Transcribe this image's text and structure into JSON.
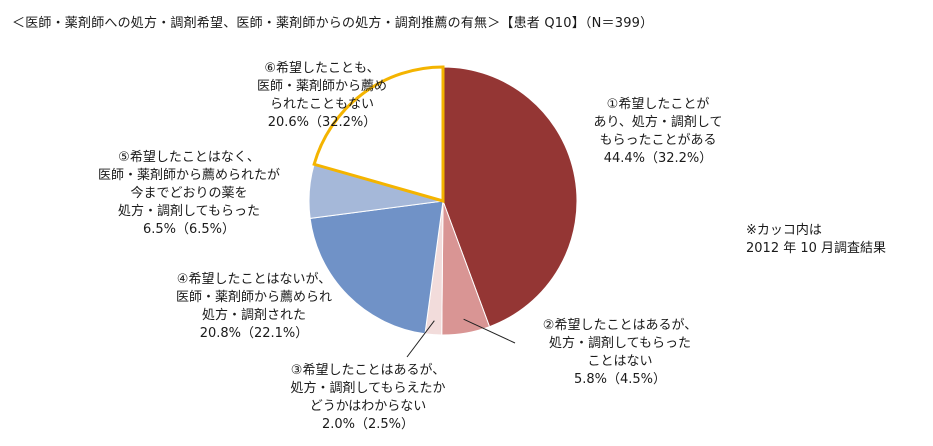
{
  "chart_data": {
    "type": "pie",
    "title": "＜医師・薬剤師への処方・調剤希望、医師・薬剤師からの処方・調剤推薦の有無＞【患者 Q10】（N＝399）",
    "slices": [
      {
        "label_lines": [
          "①希望したことが",
          "あり、処方・調剤して",
          "もらったことがある"
        ],
        "value": 44.4,
        "value_text": "44.4%（32.2%）",
        "prev_value": 32.2,
        "color": "#943634"
      },
      {
        "label_lines": [
          "②希望したことはあるが、",
          "処方・調剤してもらった",
          "ことはない"
        ],
        "value": 5.8,
        "value_text": "5.8%（4.5%）",
        "prev_value": 4.5,
        "color": "#d99594"
      },
      {
        "label_lines": [
          "③希望したことはあるが、",
          "処方・調剤してもらえたか",
          "どうかはわからない"
        ],
        "value": 2.0,
        "value_text": "2.0%（2.5%）",
        "prev_value": 2.5,
        "color": "#f2dcdb"
      },
      {
        "label_lines": [
          "④希望したことはないが、",
          "医師・薬剤師から薦められ",
          "処方・調剤された"
        ],
        "value": 20.8,
        "value_text": "20.8%（22.1%）",
        "prev_value": 22.1,
        "color": "#7092c7"
      },
      {
        "label_lines": [
          "⑤希望したことはなく、",
          "医師・薬剤師から薦められたが",
          "今までどおりの薬を",
          "処方・調剤してもらった"
        ],
        "value": 6.5,
        "value_text": "6.5%（6.5%）",
        "prev_value": 6.5,
        "color": "#a5b8d9"
      },
      {
        "label_lines": [
          "⑥希望したことも、",
          "医師・薬剤師から薦め",
          "られたこともない"
        ],
        "value": 20.6,
        "value_text": "20.6%（32.2%）",
        "prev_value": 32.2,
        "color": "#ffffff",
        "highlight_color": "#f4b400"
      }
    ],
    "note_lines": [
      "※カッコ内は",
      "2012 年 10 月調査結果"
    ]
  }
}
